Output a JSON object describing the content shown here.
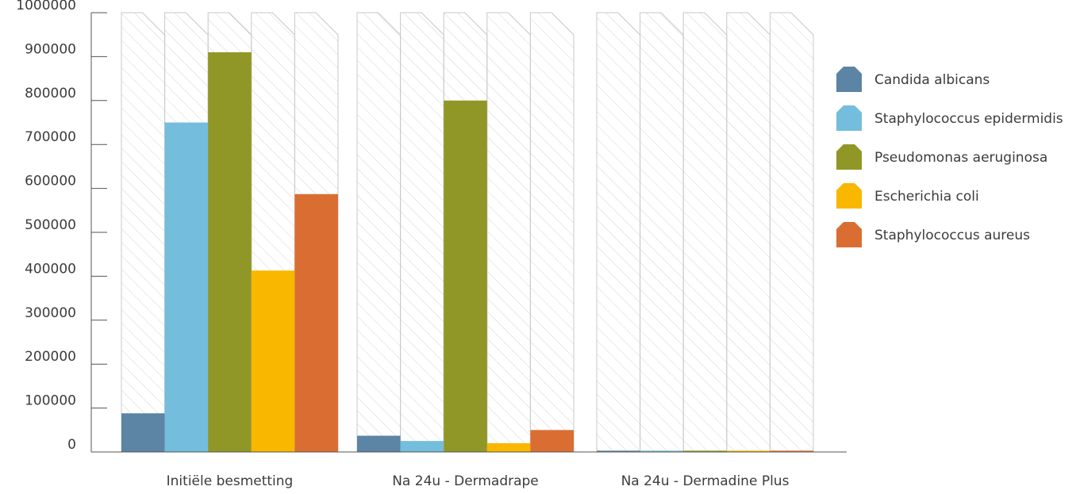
{
  "chart_data": {
    "type": "bar",
    "categories": [
      "Initiële besmetting",
      "Na 24u - Dermadrape",
      "Na 24u - Dermadine Plus"
    ],
    "series": [
      {
        "name": "Candida albicans",
        "color": "#5b84a5",
        "values": [
          88000,
          37000,
          3000
        ]
      },
      {
        "name": "Staphylococcus epidermidis",
        "color": "#74bddd",
        "values": [
          750000,
          25000,
          3000
        ]
      },
      {
        "name": "Pseudomonas aeruginosa",
        "color": "#909727",
        "values": [
          910000,
          800000,
          3000
        ]
      },
      {
        "name": "Escherichia coli",
        "color": "#f9b700",
        "values": [
          413000,
          20000,
          3000
        ]
      },
      {
        "name": "Staphylococcus aureus",
        "color": "#da6e32",
        "values": [
          587000,
          50000,
          3000
        ]
      }
    ],
    "yticks": [
      {
        "value": 0,
        "label": "0"
      },
      {
        "value": 100000,
        "label": "100000"
      },
      {
        "value": 200000,
        "label": "200000"
      },
      {
        "value": 300000,
        "label": "300000"
      },
      {
        "value": 400000,
        "label": "400000"
      },
      {
        "value": 500000,
        "label": "500000"
      },
      {
        "value": 600000,
        "label": "600000"
      },
      {
        "value": 700000,
        "label": "700000"
      },
      {
        "value": 800000,
        "label": "800000"
      },
      {
        "value": 900000,
        "label": "900000"
      },
      {
        "value": 1000000,
        "label": "1000000"
      }
    ],
    "ylim": [
      0,
      1000000
    ],
    "legend_position": "right",
    "background_bars": "hatched",
    "grid": false
  }
}
